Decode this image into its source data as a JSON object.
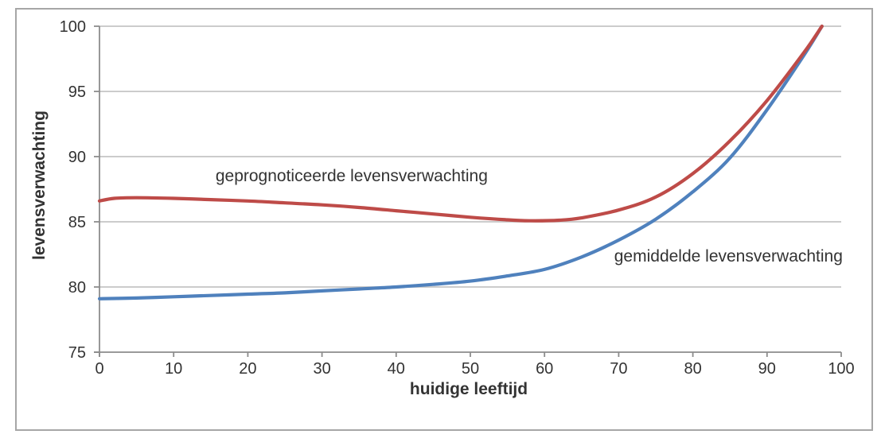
{
  "chart_data": {
    "type": "line",
    "title": "",
    "xlabel": "huidige leeftijd",
    "ylabel": "levensverwachting",
    "xlim": [
      0,
      100
    ],
    "ylim": [
      75,
      100
    ],
    "x_ticks": [
      0,
      10,
      20,
      30,
      40,
      50,
      60,
      70,
      80,
      90,
      100
    ],
    "y_ticks": [
      75,
      80,
      85,
      90,
      95,
      100
    ],
    "grid": "horizontal-only",
    "legend": "inline-text-labels",
    "series": [
      {
        "name": "gemiddelde levensverwachting",
        "color": "#4F81BD",
        "label_anchor": {
          "x": 84.8,
          "y": 82.3
        },
        "points": [
          [
            0,
            79.1
          ],
          [
            5,
            79.15
          ],
          [
            10,
            79.25
          ],
          [
            15,
            79.35
          ],
          [
            20,
            79.45
          ],
          [
            25,
            79.55
          ],
          [
            30,
            79.7
          ],
          [
            35,
            79.85
          ],
          [
            40,
            80.0
          ],
          [
            45,
            80.2
          ],
          [
            50,
            80.45
          ],
          [
            55,
            80.85
          ],
          [
            60,
            81.35
          ],
          [
            65,
            82.3
          ],
          [
            70,
            83.6
          ],
          [
            75,
            85.2
          ],
          [
            80,
            87.3
          ],
          [
            85,
            89.9
          ],
          [
            90,
            93.6
          ],
          [
            95,
            97.8
          ],
          [
            97.4,
            100
          ]
        ]
      },
      {
        "name": "geprognoticeerde levensverwachting",
        "color": "#BE4B48",
        "label_anchor": {
          "x": 34,
          "y": 88.5
        },
        "points": [
          [
            0,
            86.6
          ],
          [
            2,
            86.8
          ],
          [
            5,
            86.85
          ],
          [
            10,
            86.8
          ],
          [
            15,
            86.7
          ],
          [
            20,
            86.6
          ],
          [
            25,
            86.45
          ],
          [
            30,
            86.3
          ],
          [
            35,
            86.1
          ],
          [
            40,
            85.85
          ],
          [
            45,
            85.6
          ],
          [
            50,
            85.35
          ],
          [
            55,
            85.15
          ],
          [
            58,
            85.08
          ],
          [
            62,
            85.12
          ],
          [
            65,
            85.3
          ],
          [
            70,
            85.9
          ],
          [
            75,
            86.9
          ],
          [
            80,
            88.7
          ],
          [
            85,
            91.2
          ],
          [
            90,
            94.3
          ],
          [
            95,
            98.0
          ],
          [
            97.4,
            100
          ]
        ]
      }
    ]
  },
  "colors": {
    "background": "#FFFFFF",
    "border": "#A6A6A6",
    "gridline": "#C4C4C4",
    "axis": "#8C8C8C",
    "text": "#333333"
  }
}
